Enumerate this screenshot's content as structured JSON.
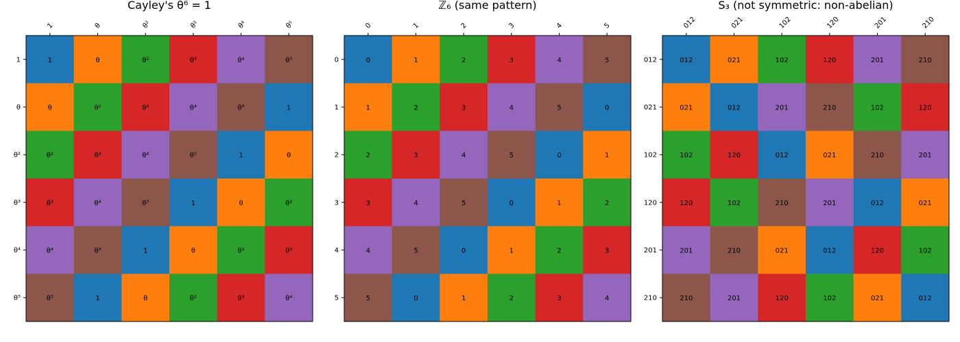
{
  "palette": [
    "#1f77b4",
    "#ff7f0e",
    "#2ca02c",
    "#d62728",
    "#9467bd",
    "#8c564b"
  ],
  "chart_data": [
    {
      "type": "heatmap",
      "title": "Cayley's θ⁶ = 1",
      "row_labels": [
        "1",
        "θ",
        "θ²",
        "θ³",
        "θ⁴",
        "θ⁵"
      ],
      "col_labels": [
        "1",
        "θ",
        "θ²",
        "θ³",
        "θ⁴",
        "θ⁵"
      ],
      "cells": [
        [
          "1",
          "θ",
          "θ²",
          "θ³",
          "θ⁴",
          "θ⁵"
        ],
        [
          "θ",
          "θ²",
          "θ³",
          "θ⁴",
          "θ⁵",
          "1"
        ],
        [
          "θ²",
          "θ³",
          "θ⁴",
          "θ⁵",
          "1",
          "θ"
        ],
        [
          "θ³",
          "θ⁴",
          "θ⁵",
          "1",
          "θ",
          "θ²"
        ],
        [
          "θ⁴",
          "θ⁵",
          "1",
          "θ",
          "θ²",
          "θ³"
        ],
        [
          "θ⁵",
          "1",
          "θ",
          "θ²",
          "θ³",
          "θ⁴"
        ]
      ],
      "color_index": [
        [
          0,
          1,
          2,
          3,
          4,
          5
        ],
        [
          1,
          2,
          3,
          4,
          5,
          0
        ],
        [
          2,
          3,
          4,
          5,
          0,
          1
        ],
        [
          3,
          4,
          5,
          0,
          1,
          2
        ],
        [
          4,
          5,
          0,
          1,
          2,
          3
        ],
        [
          5,
          0,
          1,
          2,
          3,
          4
        ]
      ]
    },
    {
      "type": "heatmap",
      "title": "ℤ₆ (same pattern)",
      "row_labels": [
        "0",
        "1",
        "2",
        "3",
        "4",
        "5"
      ],
      "col_labels": [
        "0",
        "1",
        "2",
        "3",
        "4",
        "5"
      ],
      "cells": [
        [
          "0",
          "1",
          "2",
          "3",
          "4",
          "5"
        ],
        [
          "1",
          "2",
          "3",
          "4",
          "5",
          "0"
        ],
        [
          "2",
          "3",
          "4",
          "5",
          "0",
          "1"
        ],
        [
          "3",
          "4",
          "5",
          "0",
          "1",
          "2"
        ],
        [
          "4",
          "5",
          "0",
          "1",
          "2",
          "3"
        ],
        [
          "5",
          "0",
          "1",
          "2",
          "3",
          "4"
        ]
      ],
      "color_index": [
        [
          0,
          1,
          2,
          3,
          4,
          5
        ],
        [
          1,
          2,
          3,
          4,
          5,
          0
        ],
        [
          2,
          3,
          4,
          5,
          0,
          1
        ],
        [
          3,
          4,
          5,
          0,
          1,
          2
        ],
        [
          4,
          5,
          0,
          1,
          2,
          3
        ],
        [
          5,
          0,
          1,
          2,
          3,
          4
        ]
      ]
    },
    {
      "type": "heatmap",
      "title": "S₃ (not symmetric: non-abelian)",
      "row_labels": [
        "012",
        "021",
        "102",
        "120",
        "201",
        "210"
      ],
      "col_labels": [
        "012",
        "021",
        "102",
        "120",
        "201",
        "210"
      ],
      "cells": [
        [
          "012",
          "021",
          "102",
          "120",
          "201",
          "210"
        ],
        [
          "021",
          "012",
          "201",
          "210",
          "102",
          "120"
        ],
        [
          "102",
          "120",
          "012",
          "021",
          "210",
          "201"
        ],
        [
          "120",
          "102",
          "210",
          "201",
          "012",
          "021"
        ],
        [
          "201",
          "210",
          "021",
          "012",
          "120",
          "102"
        ],
        [
          "210",
          "201",
          "120",
          "102",
          "021",
          "012"
        ]
      ],
      "color_index": [
        [
          0,
          1,
          2,
          3,
          4,
          5
        ],
        [
          1,
          0,
          4,
          5,
          2,
          3
        ],
        [
          2,
          3,
          0,
          1,
          5,
          4
        ],
        [
          3,
          2,
          5,
          4,
          0,
          1
        ],
        [
          4,
          5,
          1,
          0,
          3,
          2
        ],
        [
          5,
          4,
          3,
          2,
          1,
          0
        ]
      ]
    }
  ]
}
